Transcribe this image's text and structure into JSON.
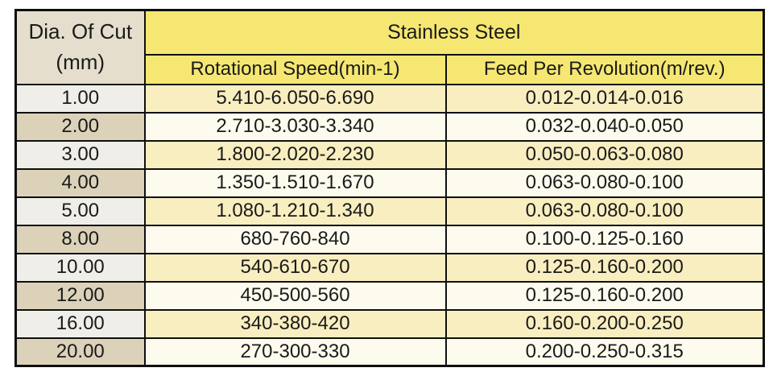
{
  "table": {
    "corner_header": {
      "line1": "Dia. Of Cut",
      "line2": "(mm)"
    },
    "group_header": "Stainless Steel",
    "col_headers": {
      "speed": "Rotational Speed(min-1)",
      "feed": "Feed Per Revolution(m/rev.)"
    },
    "rows": [
      {
        "dia": "1.00",
        "speed": "5.410-6.050-6.690",
        "feed": "0.012-0.014-0.016"
      },
      {
        "dia": "2.00",
        "speed": "2.710-3.030-3.340",
        "feed": "0.032-0.040-0.050"
      },
      {
        "dia": "3.00",
        "speed": "1.800-2.020-2.230",
        "feed": "0.050-0.063-0.080"
      },
      {
        "dia": "4.00",
        "speed": "1.350-1.510-1.670",
        "feed": "0.063-0.080-0.100"
      },
      {
        "dia": "5.00",
        "speed": "1.080-1.210-1.340",
        "feed": "0.063-0.080-0.100"
      },
      {
        "dia": "8.00",
        "speed": "680-760-840",
        "feed": "0.100-0.125-0.160"
      },
      {
        "dia": "10.00",
        "speed": "540-610-670",
        "feed": "0.125-0.160-0.200"
      },
      {
        "dia": "12.00",
        "speed": "450-500-560",
        "feed": "0.125-0.160-0.200"
      },
      {
        "dia": "16.00",
        "speed": "340-380-420",
        "feed": "0.160-0.200-0.250"
      },
      {
        "dia": "20.00",
        "speed": "270-300-330",
        "feed": "0.200-0.250-0.315"
      }
    ]
  },
  "colors": {
    "header_yellow": "#f5e772",
    "corner_beige": "#e5decc",
    "dia_light": "#efeee8",
    "dia_dark": "#dcd2ba",
    "data_yellow": "#f8eec0",
    "data_cream": "#fdfbee",
    "border": "#0f0f0f",
    "text": "#1a1a1a"
  }
}
